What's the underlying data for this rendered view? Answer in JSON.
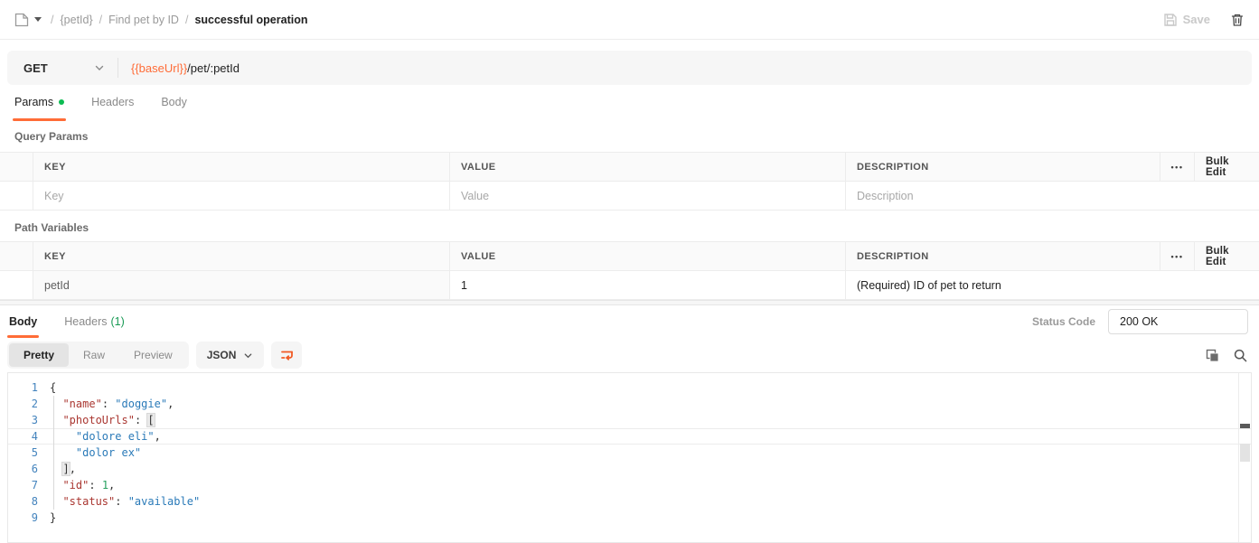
{
  "colors": {
    "accent": "#ff6c37",
    "green": "#0cbb52",
    "count_green": "#189a54"
  },
  "topbar": {
    "breadcrumb": {
      "sep": "/",
      "seg1": "{petId}",
      "seg2": "Find pet by ID",
      "seg3": "successful operation"
    },
    "save_label": "Save"
  },
  "request": {
    "method": "GET",
    "url_variable": "{{baseUrl}}",
    "url_path": "/pet/:petId"
  },
  "request_tabs": {
    "params": "Params",
    "headers": "Headers",
    "body": "Body"
  },
  "query_params": {
    "title": "Query Params",
    "headers": {
      "key": "KEY",
      "value": "VALUE",
      "description": "DESCRIPTION"
    },
    "dots": "•••",
    "bulk_edit": "Bulk Edit",
    "row": {
      "key_placeholder": "Key",
      "value_placeholder": "Value",
      "description_placeholder": "Description"
    }
  },
  "path_variables": {
    "title": "Path Variables",
    "headers": {
      "key": "KEY",
      "value": "VALUE",
      "description": "DESCRIPTION"
    },
    "dots": "•••",
    "bulk_edit": "Bulk Edit",
    "row": {
      "key": "petId",
      "value": "1",
      "description": "(Required) ID of pet to return"
    }
  },
  "response": {
    "tab_body": "Body",
    "tab_headers": "Headers",
    "tab_headers_count": "(1)",
    "status_code_label": "Status Code",
    "status_code_value": "200 OK",
    "views": {
      "pretty": "Pretty",
      "raw": "Raw",
      "preview": "Preview"
    },
    "format": "JSON",
    "body_lines": [
      {
        "n": "1",
        "active": false,
        "tokens": [
          {
            "c": "",
            "v": "{"
          }
        ]
      },
      {
        "n": "2",
        "active": false,
        "tokens": [
          {
            "c": "",
            "v": "  "
          },
          {
            "c": "tok-key",
            "v": "\"name\""
          },
          {
            "c": "",
            "v": ": "
          },
          {
            "c": "tok-str",
            "v": "\"doggie\""
          },
          {
            "c": "",
            "v": ","
          }
        ]
      },
      {
        "n": "3",
        "active": false,
        "tokens": [
          {
            "c": "",
            "v": "  "
          },
          {
            "c": "tok-key",
            "v": "\"photoUrls\""
          },
          {
            "c": "",
            "v": ": "
          },
          {
            "c": "tok-hl",
            "v": "["
          }
        ]
      },
      {
        "n": "4",
        "active": true,
        "tokens": [
          {
            "c": "",
            "v": "    "
          },
          {
            "c": "tok-str",
            "v": "\"dolore eli\""
          },
          {
            "c": "",
            "v": ","
          }
        ]
      },
      {
        "n": "5",
        "active": false,
        "tokens": [
          {
            "c": "",
            "v": "    "
          },
          {
            "c": "tok-str",
            "v": "\"dolor ex\""
          }
        ]
      },
      {
        "n": "6",
        "active": false,
        "tokens": [
          {
            "c": "",
            "v": "  "
          },
          {
            "c": "tok-hl",
            "v": "]"
          },
          {
            "c": "",
            "v": ","
          }
        ]
      },
      {
        "n": "7",
        "active": false,
        "tokens": [
          {
            "c": "",
            "v": "  "
          },
          {
            "c": "tok-key",
            "v": "\"id\""
          },
          {
            "c": "",
            "v": ": "
          },
          {
            "c": "tok-num",
            "v": "1"
          },
          {
            "c": "",
            "v": ","
          }
        ]
      },
      {
        "n": "8",
        "active": false,
        "tokens": [
          {
            "c": "",
            "v": "  "
          },
          {
            "c": "tok-key",
            "v": "\"status\""
          },
          {
            "c": "",
            "v": ": "
          },
          {
            "c": "tok-str",
            "v": "\"available\""
          }
        ]
      },
      {
        "n": "9",
        "active": false,
        "tokens": [
          {
            "c": "",
            "v": "}"
          }
        ]
      }
    ]
  }
}
